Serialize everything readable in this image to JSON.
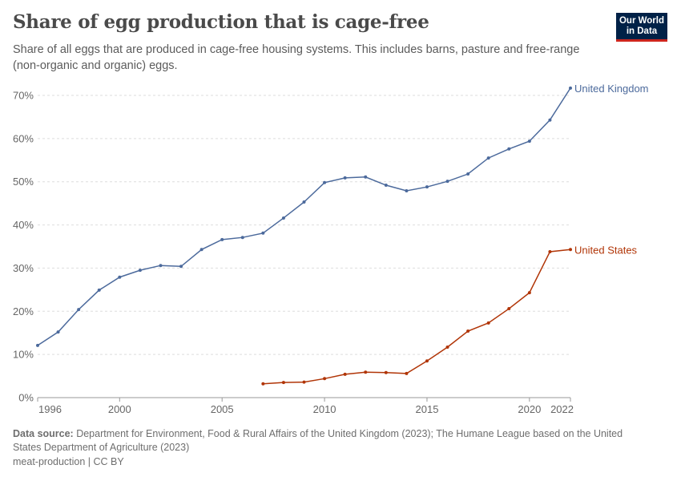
{
  "header": {
    "title": "Share of egg production that is cage-free",
    "subtitle": "Share of all eggs that are produced in cage-free housing systems. This includes barns, pasture and free-range (non-organic and organic) eggs.",
    "logo_text": "Our World in Data"
  },
  "footer": {
    "source_label": "Data source:",
    "source_text": " Department for Environment, Food & Rural Affairs of the United Kingdom (2023); The Humane League based on the United States Department of Agriculture (2023)",
    "license": "meat-production | CC BY"
  },
  "chart_data": {
    "type": "line",
    "title": "Share of egg production that is cage-free",
    "ylim": [
      0,
      70
    ],
    "xlim": [
      1996,
      2022
    ],
    "y_ticks": [
      "0%",
      "10%",
      "20%",
      "30%",
      "40%",
      "50%",
      "60%",
      "70%"
    ],
    "x_ticks": [
      "1996",
      "2000",
      "2005",
      "2010",
      "2015",
      "2020",
      "2022"
    ],
    "grid": "horizontal dashed",
    "legend": "inline labels at line ends",
    "series": [
      {
        "name": "United Kingdom",
        "color": "#4c6a9c",
        "x": [
          1996,
          1997,
          1998,
          1999,
          2000,
          2001,
          2002,
          2003,
          2004,
          2005,
          2006,
          2007,
          2008,
          2009,
          2010,
          2011,
          2012,
          2013,
          2014,
          2015,
          2016,
          2017,
          2018,
          2019,
          2020,
          2021,
          2022
        ],
        "values": [
          12.1,
          15.2,
          20.4,
          24.9,
          27.9,
          29.5,
          30.6,
          30.4,
          34.3,
          36.6,
          37.1,
          38.1,
          41.6,
          45.3,
          49.8,
          50.9,
          51.1,
          49.2,
          47.9,
          48.8,
          50.1,
          51.8,
          55.5,
          57.6,
          59.4,
          64.3,
          71.7
        ]
      },
      {
        "name": "United States",
        "color": "#b13507",
        "x": [
          2007,
          2008,
          2009,
          2010,
          2011,
          2012,
          2013,
          2014,
          2015,
          2016,
          2017,
          2018,
          2019,
          2020,
          2021,
          2022
        ],
        "values": [
          3.2,
          3.5,
          3.6,
          4.4,
          5.4,
          5.9,
          5.8,
          5.6,
          8.5,
          11.7,
          15.4,
          17.3,
          20.6,
          24.3,
          33.8,
          34.3
        ]
      }
    ]
  }
}
